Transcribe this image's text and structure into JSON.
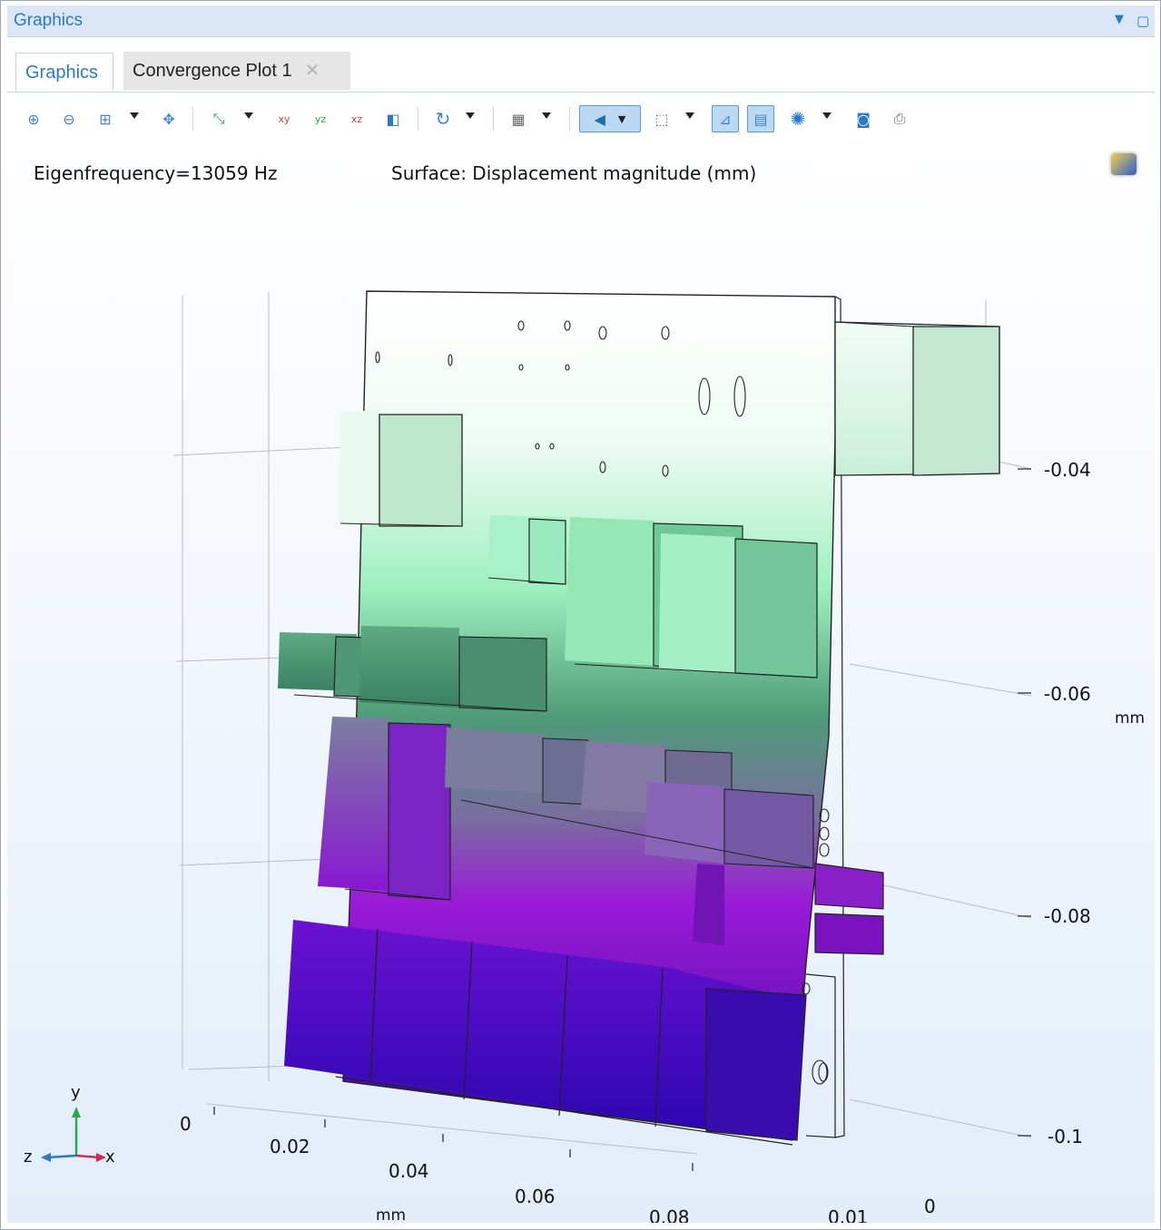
{
  "window": {
    "title": "Graphics"
  },
  "tabs": [
    {
      "label": "Graphics",
      "active": true
    },
    {
      "label": "Convergence Plot 1",
      "active": false
    }
  ],
  "toolbar": {
    "buttons": [
      "zoom-in-icon",
      "zoom-out-icon",
      "zoom-box-icon",
      "zoom-extents-icon",
      "axis-orientation-icon",
      "view-xy-icon",
      "view-yz-icon",
      "view-xz-icon",
      "go-to-default-view-icon",
      "rotate-icon",
      "transparency-icon",
      "scene-light-icon",
      "wireframe-icon",
      "show-axis-icon",
      "show-grid-icon",
      "lighting-icon",
      "camera-icon",
      "print-icon"
    ]
  },
  "plot": {
    "eigenfrequency": "Eigenfrequency=13059 Hz",
    "surface_label": "Surface: Displacement magnitude (mm)",
    "axis_right": {
      "ticks": [
        "-0.04",
        "-0.06",
        "-0.08",
        "-0.1"
      ],
      "unit": "mm"
    },
    "axis_bottom": {
      "ticks": [
        "0",
        "0.02",
        "0.04",
        "0.06",
        "0.08"
      ],
      "unit": "mm"
    },
    "axis_depth": {
      "ticks": [
        "0.01",
        "0"
      ]
    },
    "triad": {
      "y": "y",
      "z": "z",
      "x": "x"
    },
    "colors": {
      "top": "#ffffff",
      "mid": "#7ee6a8",
      "green_dark": "#3e8f6a",
      "purple": "#8a14c8",
      "blue": "#2a0fb0"
    }
  }
}
